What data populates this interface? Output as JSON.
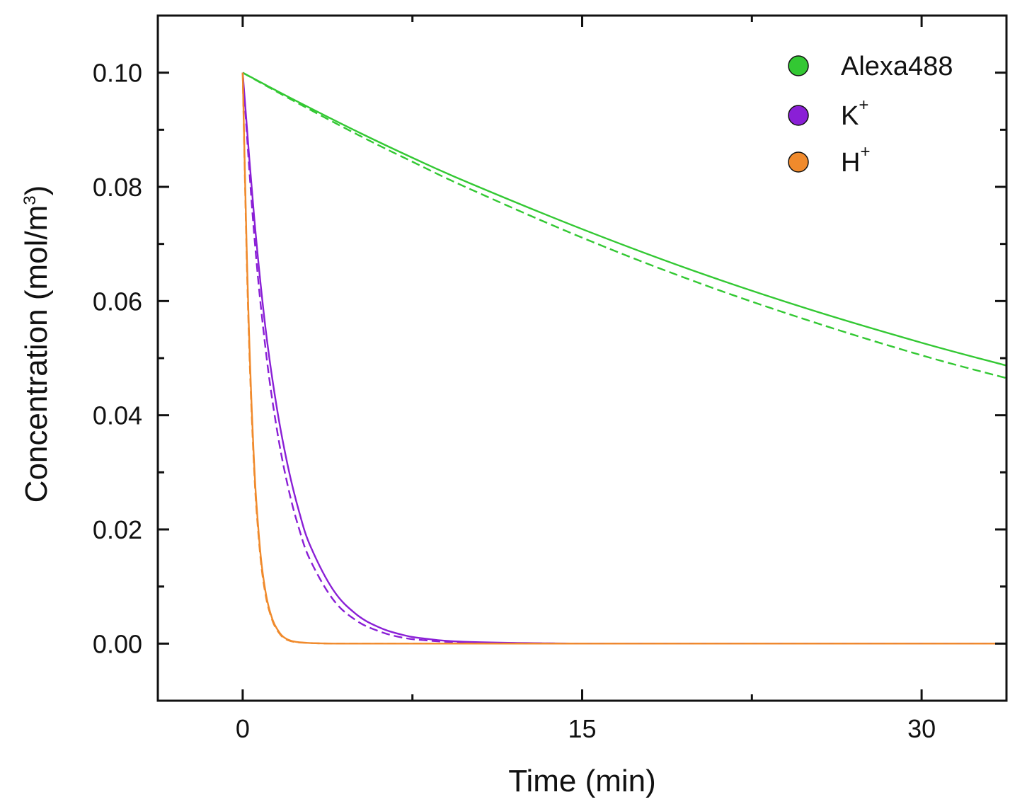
{
  "chart_data": {
    "type": "line",
    "xlabel": "Time (min)",
    "ylabel_main": "Concentration (mol/m",
    "ylabel_sup": "3",
    "ylabel_close": ")",
    "xlim": [
      -3.75,
      33.75
    ],
    "ylim": [
      -0.01,
      0.11
    ],
    "x_ticks": [
      0,
      15,
      30
    ],
    "x_tick_labels": [
      "0",
      "15",
      "30"
    ],
    "x_minor_ticks": [
      7.5,
      22.5
    ],
    "y_ticks": [
      0.0,
      0.02,
      0.04,
      0.06,
      0.08,
      0.1
    ],
    "y_tick_labels": [
      "0.00",
      "0.02",
      "0.04",
      "0.06",
      "0.08",
      "0.10"
    ],
    "y_minor_ticks": [
      0.01,
      0.03,
      0.05,
      0.07,
      0.09
    ],
    "grid": false,
    "legend_position": "top-right",
    "legend": [
      {
        "label": "Alexa488",
        "sup": "",
        "color": "#33c833"
      },
      {
        "label": "K",
        "sup": "+",
        "color": "#8a1fd6"
      },
      {
        "label": "H",
        "sup": "+",
        "color": "#f08a2c"
      }
    ],
    "series": [
      {
        "legend_index": 0,
        "style": "solid",
        "color": "#33c833",
        "x": [
          0,
          2,
          5,
          7.5,
          10,
          15,
          20,
          25,
          30,
          33.75
        ],
        "y": [
          0.1,
          0.0958,
          0.0898,
          0.0851,
          0.0807,
          0.0726,
          0.0652,
          0.0586,
          0.0527,
          0.0487
        ]
      },
      {
        "legend_index": 0,
        "style": "dashed",
        "color": "#33c833",
        "x": [
          0,
          2,
          5,
          7.5,
          10,
          15,
          20,
          25,
          30,
          33.75
        ],
        "y": [
          0.1,
          0.0956,
          0.0893,
          0.0844,
          0.0797,
          0.0711,
          0.0634,
          0.0566,
          0.0505,
          0.0465
        ]
      },
      {
        "legend_index": 1,
        "style": "solid",
        "color": "#8a1fd6",
        "x": [
          0,
          0.5,
          1,
          1.5,
          2,
          2.5,
          3,
          4,
          5,
          6,
          7,
          8,
          10,
          15,
          20,
          25,
          30,
          33.75
        ],
        "y": [
          0.1,
          0.075,
          0.0555,
          0.0415,
          0.031,
          0.023,
          0.017,
          0.0094,
          0.0052,
          0.0029,
          0.0016,
          0.0009,
          0.0003,
          0.0,
          0.0,
          0.0,
          0.0,
          0.0
        ]
      },
      {
        "legend_index": 1,
        "style": "dashed",
        "color": "#8a1fd6",
        "x": [
          0,
          0.5,
          1,
          1.5,
          2,
          2.5,
          3,
          4,
          5,
          6,
          7,
          8,
          10,
          15,
          20,
          25,
          30,
          33.75
        ],
        "y": [
          0.1,
          0.072,
          0.052,
          0.0378,
          0.0275,
          0.02,
          0.0145,
          0.0077,
          0.0041,
          0.0022,
          0.0011,
          0.0006,
          0.0002,
          0.0,
          0.0,
          0.0,
          0.0,
          0.0
        ]
      },
      {
        "legend_index": 2,
        "style": "solid",
        "color": "#f08a2c",
        "x": [
          0,
          0.1,
          0.2,
          0.3,
          0.4,
          0.5,
          0.6,
          0.8,
          1.0,
          1.2,
          1.5,
          2.0,
          3,
          5,
          10,
          15,
          20,
          25,
          30,
          33.75
        ],
        "y": [
          0.1,
          0.082,
          0.0655,
          0.052,
          0.041,
          0.032,
          0.025,
          0.0152,
          0.0093,
          0.0057,
          0.0027,
          0.0007,
          0.0001,
          0.0,
          0.0,
          0.0,
          0.0,
          0.0,
          0.0,
          0.0
        ]
      },
      {
        "legend_index": 2,
        "style": "dashed",
        "color": "#f08a2c",
        "x": [
          0,
          0.1,
          0.2,
          0.3,
          0.4,
          0.5,
          0.6,
          0.8,
          1.0,
          1.2,
          1.5,
          2.0,
          3,
          5,
          10,
          15,
          20,
          25,
          30,
          33.75
        ],
        "y": [
          0.1,
          0.081,
          0.064,
          0.0505,
          0.0398,
          0.031,
          0.024,
          0.0145,
          0.0088,
          0.0054,
          0.0025,
          0.0006,
          0.0001,
          0.0,
          0.0,
          0.0,
          0.0,
          0.0,
          0.0,
          0.0
        ]
      }
    ]
  }
}
